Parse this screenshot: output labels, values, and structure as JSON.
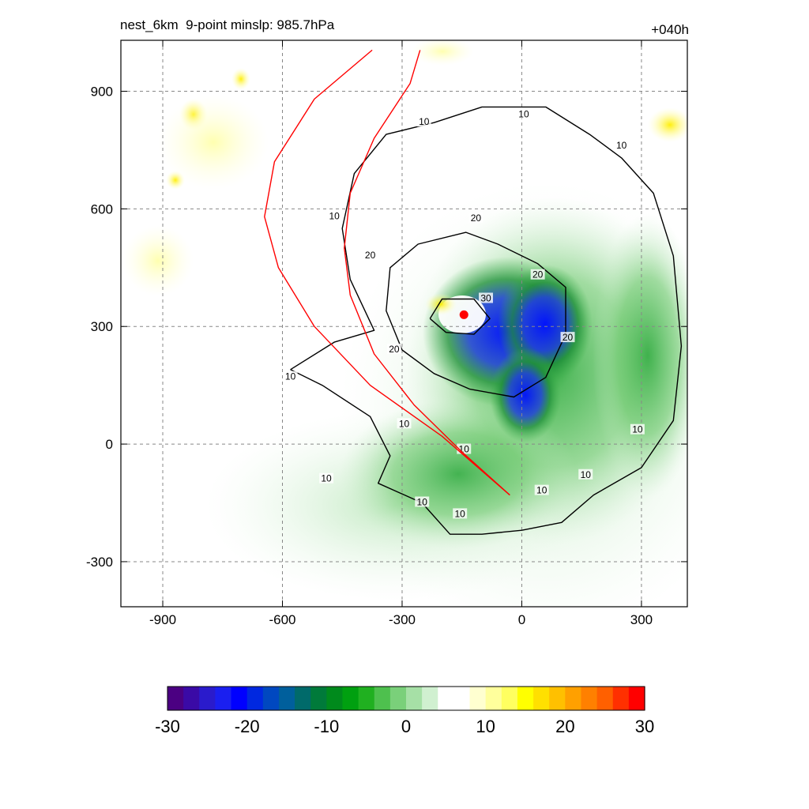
{
  "header": {
    "title": "nest_6km  9-point minslp: 985.7hPa",
    "time_label": "+040h"
  },
  "chart_data": {
    "type": "heatmap",
    "title": "nest_6km  9-point minslp: 985.7hPa",
    "forecast_time": "+040h",
    "xlabel": "",
    "ylabel": "",
    "xlim": [
      -1005,
      415
    ],
    "ylim": [
      -415,
      1030
    ],
    "x_ticks": [
      -900,
      -600,
      -300,
      0,
      300
    ],
    "y_ticks": [
      -300,
      0,
      300,
      600,
      900
    ],
    "grid": true,
    "colorbar": {
      "min": -30,
      "max": 30,
      "ticks": [
        -30,
        -20,
        -10,
        0,
        10,
        20,
        30
      ],
      "orientation": "horizontal",
      "colors": [
        "#4b0082",
        "#3a0aa6",
        "#2a1bcc",
        "#1a1ff0",
        "#0000ff",
        "#0028e0",
        "#0048c0",
        "#005f9c",
        "#006a6a",
        "#007a3a",
        "#008a1c",
        "#00a010",
        "#20b020",
        "#4ec04e",
        "#7ad07a",
        "#a6e0a6",
        "#d0f0d0",
        "#ffffff",
        "#ffffff",
        "#ffffd0",
        "#ffff9c",
        "#ffff60",
        "#ffff00",
        "#ffe000",
        "#ffc000",
        "#ffa000",
        "#ff8000",
        "#ff6000",
        "#ff3000",
        "#ff0000"
      ]
    },
    "contour_levels": [
      10,
      20,
      30
    ],
    "storm_center": {
      "x": -145,
      "y": 330
    },
    "track_lines": [
      {
        "name": "",
        "color": "#ff0000",
        "points": [
          [
            -30,
            -130
          ],
          [
            -200,
            20
          ],
          [
            -380,
            150
          ],
          [
            -520,
            300
          ],
          [
            -610,
            450
          ],
          [
            -645,
            580
          ],
          [
            -620,
            720
          ],
          [
            -520,
            880
          ],
          [
            -375,
            1005
          ]
        ]
      },
      {
        "name": "",
        "color": "#ff0000",
        "points": [
          [
            -30,
            -130
          ],
          [
            -150,
            -20
          ],
          [
            -270,
            100
          ],
          [
            -370,
            230
          ],
          [
            -430,
            380
          ],
          [
            -445,
            500
          ],
          [
            -430,
            640
          ],
          [
            -370,
            780
          ],
          [
            -280,
            920
          ],
          [
            -255,
            1005
          ]
        ]
      }
    ],
    "contours": [
      {
        "level": 10,
        "points": [
          [
            -580,
            190
          ],
          [
            -500,
            150
          ],
          [
            -380,
            70
          ],
          [
            -330,
            -30
          ],
          [
            -360,
            -100
          ],
          [
            -250,
            -150
          ],
          [
            -180,
            -230
          ],
          [
            -100,
            -230
          ],
          [
            0,
            -220
          ],
          [
            100,
            -200
          ],
          [
            180,
            -130
          ],
          [
            300,
            -60
          ],
          [
            380,
            60
          ],
          [
            400,
            250
          ],
          [
            380,
            480
          ],
          [
            330,
            640
          ],
          [
            250,
            730
          ],
          [
            170,
            790
          ],
          [
            60,
            860
          ],
          [
            -100,
            860
          ],
          [
            -220,
            820
          ],
          [
            -340,
            790
          ],
          [
            -420,
            690
          ],
          [
            -450,
            550
          ],
          [
            -430,
            420
          ],
          [
            -370,
            290
          ],
          [
            -470,
            260
          ],
          [
            -580,
            190
          ]
        ]
      },
      {
        "level": 20,
        "points": [
          [
            -300,
            240
          ],
          [
            -340,
            340
          ],
          [
            -330,
            450
          ],
          [
            -260,
            510
          ],
          [
            -140,
            540
          ],
          [
            -60,
            510
          ],
          [
            40,
            460
          ],
          [
            110,
            400
          ],
          [
            110,
            280
          ],
          [
            60,
            170
          ],
          [
            -20,
            120
          ],
          [
            -130,
            140
          ],
          [
            -220,
            180
          ],
          [
            -300,
            240
          ]
        ]
      },
      {
        "level": 30,
        "points": [
          [
            -230,
            320
          ],
          [
            -200,
            370
          ],
          [
            -120,
            370
          ],
          [
            -80,
            320
          ],
          [
            -120,
            280
          ],
          [
            -190,
            285
          ],
          [
            -230,
            320
          ]
        ]
      }
    ],
    "contour_labels": [
      {
        "text": "10",
        "x": -245,
        "y": 820
      },
      {
        "text": "10",
        "x": 5,
        "y": 840
      },
      {
        "text": "10",
        "x": 250,
        "y": 760
      },
      {
        "text": "10",
        "x": -470,
        "y": 580
      },
      {
        "text": "20",
        "x": -380,
        "y": 480
      },
      {
        "text": "20",
        "x": -115,
        "y": 575
      },
      {
        "text": "20",
        "x": 40,
        "y": 430
      },
      {
        "text": "20",
        "x": -320,
        "y": 240
      },
      {
        "text": "20",
        "x": 115,
        "y": 270
      },
      {
        "text": "30",
        "x": -90,
        "y": 370
      },
      {
        "text": "10",
        "x": -580,
        "y": 170
      },
      {
        "text": "10",
        "x": -295,
        "y": 50
      },
      {
        "text": "10",
        "x": -145,
        "y": -15
      },
      {
        "text": "10",
        "x": -490,
        "y": -90
      },
      {
        "text": "10",
        "x": -250,
        "y": -150
      },
      {
        "text": "10",
        "x": -155,
        "y": -180
      },
      {
        "text": "10",
        "x": 50,
        "y": -120
      },
      {
        "text": "10",
        "x": 160,
        "y": -80
      },
      {
        "text": "10",
        "x": 290,
        "y": 35
      }
    ]
  }
}
